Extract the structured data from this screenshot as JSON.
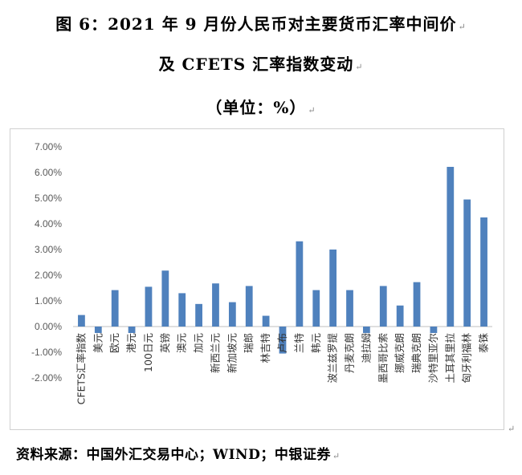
{
  "title": {
    "line1": "图 6：2021 年 9 月份人民币对主要货币汇率中间价",
    "line2": "及 CFETS 汇率指数变动",
    "line3": "（单位：%）"
  },
  "marks": {
    "para": "↵",
    "corner": "↵"
  },
  "source": "资料来源：中国外汇交易中心；WIND；中银证券",
  "chart_data": {
    "type": "bar",
    "title": "",
    "xlabel": "",
    "ylabel": "",
    "ylim": [
      -2,
      7
    ],
    "ytick_step": 1,
    "ytick_labels": [
      "-2.00%",
      "-1.00%",
      "0.00%",
      "1.00%",
      "2.00%",
      "3.00%",
      "4.00%",
      "5.00%",
      "6.00%",
      "7.00%"
    ],
    "grid": false,
    "legend": "none",
    "bar_color": "#4f81bd",
    "categories": [
      "CFETS汇率指数",
      "美元",
      "欧元",
      "港元",
      "100日元",
      "英镑",
      "澳元",
      "加元",
      "新西兰元",
      "新加坡元",
      "瑞郎",
      "林吉特",
      "卢布",
      "兰特",
      "韩元",
      "波兰兹罗提",
      "丹麦克朗",
      "迪拉姆",
      "墨西哥比索",
      "挪威克朗",
      "瑞典克朗",
      "沙特里亚尔",
      "土耳其里拉",
      "匈牙利福林",
      "泰铢"
    ],
    "values": [
      0.45,
      -0.25,
      1.42,
      -0.25,
      1.55,
      2.18,
      1.3,
      0.88,
      1.68,
      0.95,
      1.58,
      0.42,
      -1.05,
      3.32,
      1.42,
      3.0,
      1.42,
      -0.25,
      1.58,
      0.82,
      1.73,
      -0.25,
      6.22,
      4.95,
      4.25
    ]
  }
}
